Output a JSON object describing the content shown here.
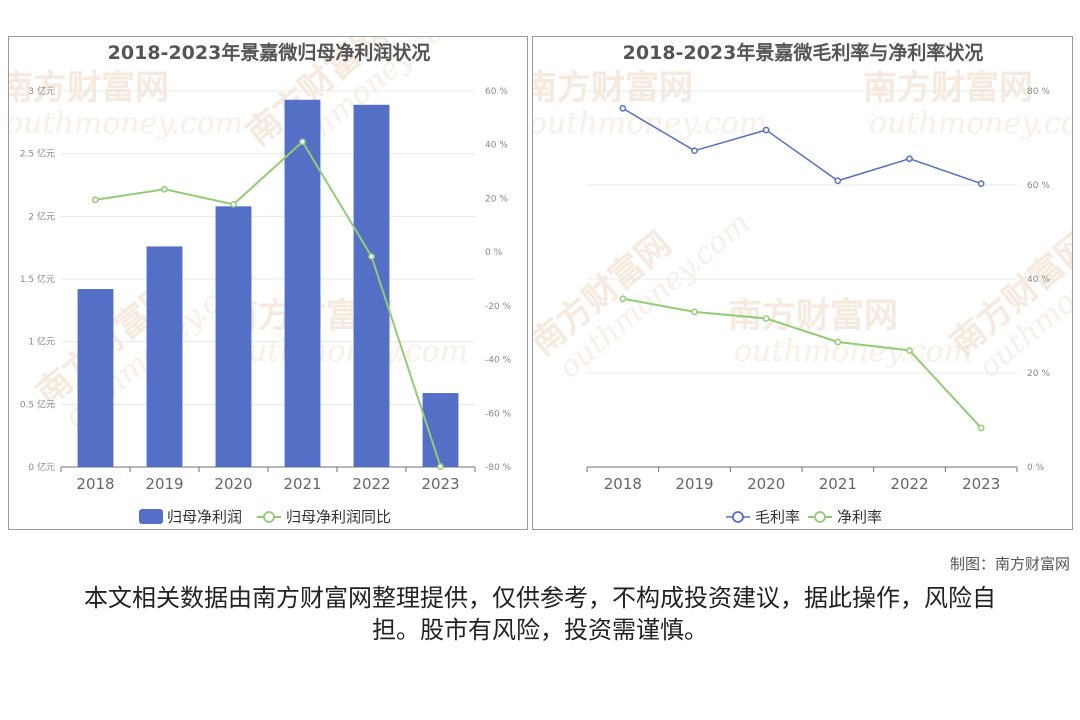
{
  "watermark": {
    "text_cn": "南方财富网",
    "text_en": "outhmoney.com"
  },
  "credit": "制图：南方财富网",
  "disclaimer": "本文相关数据由南方财富网整理提供，仅供参考，不构成投资建议，据此操作，风险自担。股市有风险，投资需谨慎。",
  "colors": {
    "bar": "#5470c6",
    "green": "#91cc75",
    "axis": "#6e7079",
    "grid": "#e8e8e8"
  },
  "chart_data": [
    {
      "type": "bar",
      "title": "2018-2023年景嘉微归母净利润状况",
      "categories": [
        "2018",
        "2019",
        "2020",
        "2021",
        "2022",
        "2023"
      ],
      "y_left": {
        "min": 0,
        "max": 3,
        "ticks": [
          "0 亿元",
          "0.5 亿元",
          "1 亿元",
          "1.5 亿元",
          "2 亿元",
          "2.5 亿元",
          "3 亿元"
        ],
        "tick_values": [
          0,
          0.5,
          1,
          1.5,
          2,
          2.5,
          3
        ]
      },
      "y_right": {
        "min": -80,
        "max": 60,
        "ticks": [
          "-80 %",
          "-60 %",
          "-40 %",
          "-20 %",
          "0 %",
          "20 %",
          "40 %",
          "60 %"
        ],
        "tick_values": [
          -80,
          -60,
          -40,
          -20,
          0,
          20,
          40,
          60
        ]
      },
      "series": [
        {
          "name": "归母净利润",
          "kind": "bar",
          "axis": "left",
          "values": [
            1.42,
            1.76,
            2.08,
            2.93,
            2.89,
            0.59
          ]
        },
        {
          "name": "归母净利润同比",
          "kind": "line",
          "axis": "right",
          "values": [
            19.5,
            23.4,
            17.8,
            41.1,
            -1.6,
            -79.8
          ]
        }
      ],
      "legend_position": "bottom"
    },
    {
      "type": "line",
      "title": "2018-2023年景嘉微毛利率与净利率状况",
      "categories": [
        "2018",
        "2019",
        "2020",
        "2021",
        "2022",
        "2023"
      ],
      "y_right": {
        "min": 0,
        "max": 80,
        "ticks": [
          "0 %",
          "20 %",
          "40 %",
          "60 %",
          "80 %"
        ],
        "tick_values": [
          0,
          20,
          40,
          60,
          80
        ]
      },
      "series": [
        {
          "name": "毛利率",
          "values": [
            76.3,
            67.3,
            71.7,
            60.9,
            65.6,
            60.3
          ]
        },
        {
          "name": "净利率",
          "values": [
            35.8,
            33.0,
            31.6,
            26.6,
            24.8,
            8.3
          ]
        }
      ],
      "legend_position": "bottom"
    }
  ]
}
